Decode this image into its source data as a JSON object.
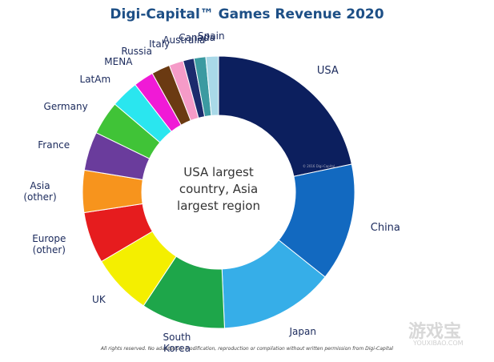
{
  "chart_data": {
    "type": "pie",
    "title": "Digi-Capital™ Games Revenue 2020",
    "categories": [
      "USA",
      "China",
      "Japan",
      "South Korea",
      "UK",
      "Europe (other)",
      "Asia (other)",
      "France",
      "Germany",
      "LatAm",
      "MENA",
      "Russia",
      "Italy",
      "Australia",
      "Canada",
      "Spain"
    ],
    "values": [
      21.7,
      14,
      13.6,
      10,
      7.2,
      6.1,
      5,
      4.6,
      4,
      3.3,
      2.4,
      2.2,
      1.7,
      1.3,
      1.4,
      1.5
    ],
    "colors": [
      "#0c1f5e",
      "#1269c0",
      "#36aee8",
      "#1ea64a",
      "#f4ef00",
      "#e61c1e",
      "#f7941d",
      "#6a3c9c",
      "#40c337",
      "#2ae6ef",
      "#f01ad6",
      "#6b3a12",
      "#f59bc8",
      "#1b2b6d",
      "#3b9aa1",
      "#a9d9e8"
    ],
    "donut": true,
    "center_text": "USA largest country, Asia largest region",
    "copyright": "© 2016 Digi-Capital",
    "footnote": "All rights reserved. No adaptation, modification, reproduction or compilation without written permission from Digi-Capital",
    "watermark": "游戏宝",
    "watermark_url": "YOUXIBAO.COM"
  }
}
